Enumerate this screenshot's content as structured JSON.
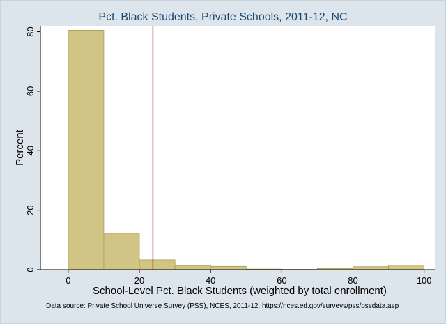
{
  "chart_data": {
    "type": "bar",
    "title": "Pct. Black Students, Private Schools, 2011-12, NC",
    "xlabel": "School-Level Pct. Black Students (weighted by total enrollment)",
    "ylabel": "Percent",
    "source": "Data source: Private School Universe Survey (PSS), NCES, 2011-12. https://nces.ed.gov/surveys/pss/pssdata.asp",
    "bin_edges": [
      0,
      10,
      20,
      30,
      40,
      50,
      60,
      70,
      80,
      90,
      100
    ],
    "values": [
      80.5,
      12.2,
      3.3,
      1.4,
      1.1,
      0.2,
      0.1,
      0.4,
      1.0,
      1.5
    ],
    "xlim": [
      -7.8,
      103
    ],
    "ylim": [
      0,
      82
    ],
    "xticks": [
      0,
      20,
      40,
      60,
      80,
      100
    ],
    "yticks": [
      0,
      20,
      40,
      60,
      80
    ],
    "grid": false,
    "reference_line": {
      "x": 23.8,
      "color": "#a31f34"
    },
    "colors": {
      "bar_fill": "#d1c586",
      "bar_stroke": "#a59a56",
      "plot_bg": "#ffffff",
      "page_bg": "#dde5ec",
      "title": "#1a476f"
    }
  }
}
